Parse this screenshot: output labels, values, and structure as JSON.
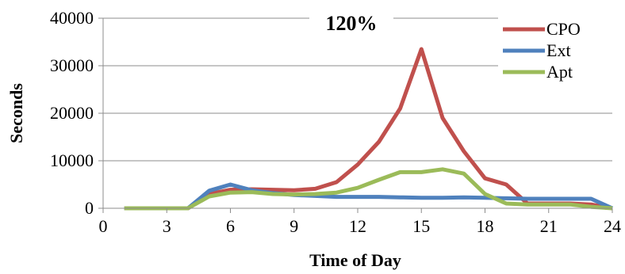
{
  "chart_data": {
    "type": "line",
    "annotation": "120%",
    "xlabel": "Time of Day",
    "ylabel": "Seconds",
    "xlim": [
      0,
      24
    ],
    "ylim": [
      0,
      40000
    ],
    "x_ticks": [
      0,
      3,
      6,
      9,
      12,
      15,
      18,
      21,
      24
    ],
    "y_ticks": [
      0,
      10000,
      20000,
      30000,
      40000
    ],
    "grid": "horizontal",
    "legend_position": "top-right",
    "x": [
      1,
      2,
      3,
      4,
      5,
      6,
      7,
      8,
      9,
      10,
      11,
      12,
      13,
      14,
      15,
      16,
      17,
      18,
      19,
      20,
      21,
      22,
      23,
      24
    ],
    "series": [
      {
        "name": "CPO",
        "color": "#c0504d",
        "values": [
          0,
          0,
          0,
          0,
          3000,
          3900,
          4000,
          3900,
          3800,
          4100,
          5500,
          9200,
          14000,
          21000,
          33500,
          19000,
          12000,
          6300,
          5000,
          1000,
          1000,
          1000,
          800,
          0
        ]
      },
      {
        "name": "Ext",
        "color": "#4f81bd",
        "values": [
          0,
          0,
          0,
          0,
          3700,
          5000,
          3800,
          3200,
          2800,
          2600,
          2400,
          2400,
          2400,
          2300,
          2200,
          2200,
          2300,
          2200,
          2100,
          2000,
          2000,
          2000,
          2000,
          0
        ]
      },
      {
        "name": "Apt",
        "color": "#9bbb59",
        "values": [
          0,
          0,
          0,
          0,
          2500,
          3300,
          3400,
          3000,
          2900,
          3000,
          3300,
          4300,
          6000,
          7600,
          7600,
          8200,
          7300,
          3000,
          1000,
          800,
          800,
          800,
          300,
          0
        ]
      }
    ]
  }
}
